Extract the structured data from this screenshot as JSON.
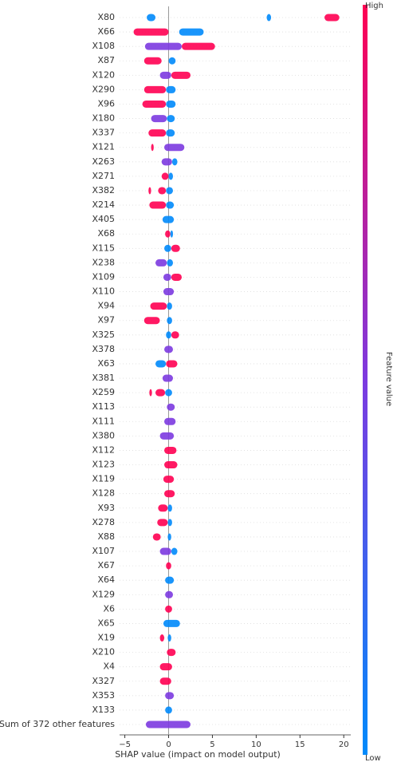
{
  "chart_data": {
    "type": "beeswarm",
    "xlabel": "SHAP value (impact on model output)",
    "xlim": [
      -5.6,
      20.8
    ],
    "xticks": [
      {
        "value": -5,
        "label": "−5"
      },
      0,
      5,
      10,
      15,
      20
    ],
    "colorbar": {
      "label": "Feature value",
      "high": "High",
      "low": "Low",
      "colors": [
        "#ff0052",
        "#7c3ae0",
        "#008afb"
      ]
    },
    "features": [
      {
        "name": "X80",
        "segments": [
          {
            "from": -2.5,
            "to": -1.5,
            "color": "#008afb"
          },
          {
            "from": 11.2,
            "to": 11.7,
            "color": "#008afb"
          },
          {
            "from": 17.8,
            "to": 19.5,
            "color": "#ff0052"
          }
        ]
      },
      {
        "name": "X66",
        "segments": [
          {
            "from": -4,
            "to": 0,
            "color": "#ff0052"
          },
          {
            "from": 1.2,
            "to": 4,
            "color": "#008afb"
          }
        ]
      },
      {
        "name": "X108",
        "segments": [
          {
            "from": -2.7,
            "to": 1.5,
            "color": "#7c3ae0"
          },
          {
            "from": 1.5,
            "to": 5.3,
            "color": "#ff0052"
          }
        ]
      },
      {
        "name": "X87",
        "segments": [
          {
            "from": -2.8,
            "to": -0.8,
            "color": "#ff0052"
          },
          {
            "from": 0,
            "to": 0.8,
            "color": "#008afb"
          }
        ]
      },
      {
        "name": "X120",
        "segments": [
          {
            "from": -1,
            "to": 0.3,
            "color": "#7c3ae0"
          },
          {
            "from": 0.3,
            "to": 2.5,
            "color": "#ff0052"
          }
        ]
      },
      {
        "name": "X290",
        "segments": [
          {
            "from": -2.8,
            "to": -0.3,
            "color": "#ff0052"
          },
          {
            "from": -0.3,
            "to": 0.8,
            "color": "#008afb"
          }
        ]
      },
      {
        "name": "X96",
        "segments": [
          {
            "from": -3,
            "to": -0.3,
            "color": "#ff0052"
          },
          {
            "from": -0.3,
            "to": 0.8,
            "color": "#008afb"
          }
        ]
      },
      {
        "name": "X180",
        "segments": [
          {
            "from": -2,
            "to": -0.2,
            "color": "#7c3ae0"
          },
          {
            "from": -0.2,
            "to": 0.7,
            "color": "#008afb"
          }
        ]
      },
      {
        "name": "X337",
        "segments": [
          {
            "from": -2.3,
            "to": -0.3,
            "color": "#ff0052"
          },
          {
            "from": -0.3,
            "to": 0.7,
            "color": "#008afb"
          }
        ]
      },
      {
        "name": "X121",
        "segments": [
          {
            "from": -2,
            "to": -1.7,
            "color": "#ff0052"
          },
          {
            "from": -0.5,
            "to": 1.8,
            "color": "#7c3ae0"
          }
        ]
      },
      {
        "name": "X263",
        "segments": [
          {
            "from": -0.8,
            "to": 0.4,
            "color": "#7c3ae0"
          },
          {
            "from": 0.4,
            "to": 1,
            "color": "#008afb"
          }
        ]
      },
      {
        "name": "X271",
        "segments": [
          {
            "from": -0.8,
            "to": 0,
            "color": "#ff0052"
          },
          {
            "from": 0,
            "to": 0.5,
            "color": "#008afb"
          }
        ]
      },
      {
        "name": "X382",
        "segments": [
          {
            "from": -2.3,
            "to": -2,
            "color": "#ff0052"
          },
          {
            "from": -1.2,
            "to": -0.3,
            "color": "#ff0052"
          },
          {
            "from": -0.3,
            "to": 0.5,
            "color": "#008afb"
          }
        ]
      },
      {
        "name": "X214",
        "segments": [
          {
            "from": -2.2,
            "to": -0.3,
            "color": "#ff0052"
          },
          {
            "from": -0.3,
            "to": 0.6,
            "color": "#008afb"
          }
        ]
      },
      {
        "name": "X405",
        "segments": [
          {
            "from": -0.7,
            "to": 0.6,
            "color": "#008afb"
          }
        ]
      },
      {
        "name": "X68",
        "segments": [
          {
            "from": -0.4,
            "to": 0.2,
            "color": "#ff0052"
          },
          {
            "from": 0.2,
            "to": 0.5,
            "color": "#008afb"
          }
        ]
      },
      {
        "name": "X115",
        "segments": [
          {
            "from": -0.5,
            "to": 0.3,
            "color": "#008afb"
          },
          {
            "from": 0.3,
            "to": 1.3,
            "color": "#ff0052"
          }
        ]
      },
      {
        "name": "X238",
        "segments": [
          {
            "from": -1.5,
            "to": -0.2,
            "color": "#7c3ae0"
          },
          {
            "from": -0.2,
            "to": 0.5,
            "color": "#008afb"
          }
        ]
      },
      {
        "name": "X109",
        "segments": [
          {
            "from": -0.6,
            "to": 0.3,
            "color": "#7c3ae0"
          },
          {
            "from": 0.3,
            "to": 1.5,
            "color": "#ff0052"
          }
        ]
      },
      {
        "name": "X110",
        "segments": [
          {
            "from": -0.6,
            "to": 0.6,
            "color": "#7c3ae0"
          }
        ]
      },
      {
        "name": "X94",
        "segments": [
          {
            "from": -2.1,
            "to": -0.2,
            "color": "#ff0052"
          },
          {
            "from": -0.2,
            "to": 0.4,
            "color": "#008afb"
          }
        ]
      },
      {
        "name": "X97",
        "segments": [
          {
            "from": -2.8,
            "to": -1,
            "color": "#ff0052"
          },
          {
            "from": -0.2,
            "to": 0.4,
            "color": "#008afb"
          }
        ]
      },
      {
        "name": "X325",
        "segments": [
          {
            "from": -0.3,
            "to": 0.3,
            "color": "#008afb"
          },
          {
            "from": 0.3,
            "to": 1.2,
            "color": "#ff0052"
          }
        ]
      },
      {
        "name": "X378",
        "segments": [
          {
            "from": -0.5,
            "to": 0.5,
            "color": "#7c3ae0"
          }
        ]
      },
      {
        "name": "X63",
        "segments": [
          {
            "from": -1.5,
            "to": -0.3,
            "color": "#008afb"
          },
          {
            "from": -0.3,
            "to": 1,
            "color": "#ff0052"
          }
        ]
      },
      {
        "name": "X381",
        "segments": [
          {
            "from": -0.7,
            "to": 0.5,
            "color": "#7c3ae0"
          }
        ]
      },
      {
        "name": "X259",
        "segments": [
          {
            "from": -2.2,
            "to": -1.9,
            "color": "#ff0052"
          },
          {
            "from": -1.5,
            "to": -0.4,
            "color": "#ff0052"
          },
          {
            "from": -0.4,
            "to": 0.4,
            "color": "#008afb"
          }
        ]
      },
      {
        "name": "X113",
        "segments": [
          {
            "from": -0.2,
            "to": 0.7,
            "color": "#7c3ae0"
          }
        ]
      },
      {
        "name": "X111",
        "segments": [
          {
            "from": -0.5,
            "to": 0.8,
            "color": "#7c3ae0"
          }
        ]
      },
      {
        "name": "X380",
        "segments": [
          {
            "from": -1,
            "to": 0.6,
            "color": "#7c3ae0"
          }
        ]
      },
      {
        "name": "X112",
        "segments": [
          {
            "from": -0.5,
            "to": 0.9,
            "color": "#ff0052"
          }
        ]
      },
      {
        "name": "X123",
        "segments": [
          {
            "from": -0.5,
            "to": 1,
            "color": "#ff0052"
          }
        ]
      },
      {
        "name": "X119",
        "segments": [
          {
            "from": -0.6,
            "to": 0.6,
            "color": "#ff0052"
          }
        ]
      },
      {
        "name": "X128",
        "segments": [
          {
            "from": -0.5,
            "to": 0.7,
            "color": "#ff0052"
          }
        ]
      },
      {
        "name": "X93",
        "segments": [
          {
            "from": -1.2,
            "to": -0.1,
            "color": "#ff0052"
          },
          {
            "from": -0.1,
            "to": 0.4,
            "color": "#008afb"
          }
        ]
      },
      {
        "name": "X278",
        "segments": [
          {
            "from": -1.3,
            "to": -0.1,
            "color": "#ff0052"
          },
          {
            "from": -0.1,
            "to": 0.4,
            "color": "#008afb"
          }
        ]
      },
      {
        "name": "X88",
        "segments": [
          {
            "from": -1.8,
            "to": -0.9,
            "color": "#ff0052"
          },
          {
            "from": -0.1,
            "to": 0.3,
            "color": "#008afb"
          }
        ]
      },
      {
        "name": "X107",
        "segments": [
          {
            "from": -1,
            "to": 0.3,
            "color": "#7c3ae0"
          },
          {
            "from": 0.3,
            "to": 1,
            "color": "#008afb"
          }
        ]
      },
      {
        "name": "X67",
        "segments": [
          {
            "from": -0.3,
            "to": 0.3,
            "color": "#ff0052"
          }
        ]
      },
      {
        "name": "X64",
        "segments": [
          {
            "from": -0.4,
            "to": 0.6,
            "color": "#008afb"
          }
        ]
      },
      {
        "name": "X129",
        "segments": [
          {
            "from": -0.4,
            "to": 0.5,
            "color": "#7c3ae0"
          }
        ]
      },
      {
        "name": "X6",
        "segments": [
          {
            "from": -0.4,
            "to": 0.4,
            "color": "#ff0052"
          }
        ]
      },
      {
        "name": "X65",
        "segments": [
          {
            "from": -0.6,
            "to": 1.3,
            "color": "#008afb"
          }
        ]
      },
      {
        "name": "X19",
        "segments": [
          {
            "from": -1,
            "to": -0.5,
            "color": "#ff0052"
          },
          {
            "from": -0.1,
            "to": 0.3,
            "color": "#008afb"
          }
        ]
      },
      {
        "name": "X210",
        "segments": [
          {
            "from": -0.2,
            "to": 0.8,
            "color": "#ff0052"
          }
        ]
      },
      {
        "name": "X4",
        "segments": [
          {
            "from": -1,
            "to": 0.4,
            "color": "#ff0052"
          }
        ]
      },
      {
        "name": "X327",
        "segments": [
          {
            "from": -1,
            "to": 0.3,
            "color": "#ff0052"
          }
        ]
      },
      {
        "name": "X353",
        "segments": [
          {
            "from": -0.4,
            "to": 0.6,
            "color": "#7c3ae0"
          }
        ]
      },
      {
        "name": "X133",
        "segments": [
          {
            "from": -0.4,
            "to": 0.4,
            "color": "#008afb"
          }
        ]
      },
      {
        "name": "Sum of 372 other features",
        "segments": [
          {
            "from": -2.6,
            "to": 2.5,
            "color": "#7c3ae0"
          }
        ]
      }
    ]
  }
}
